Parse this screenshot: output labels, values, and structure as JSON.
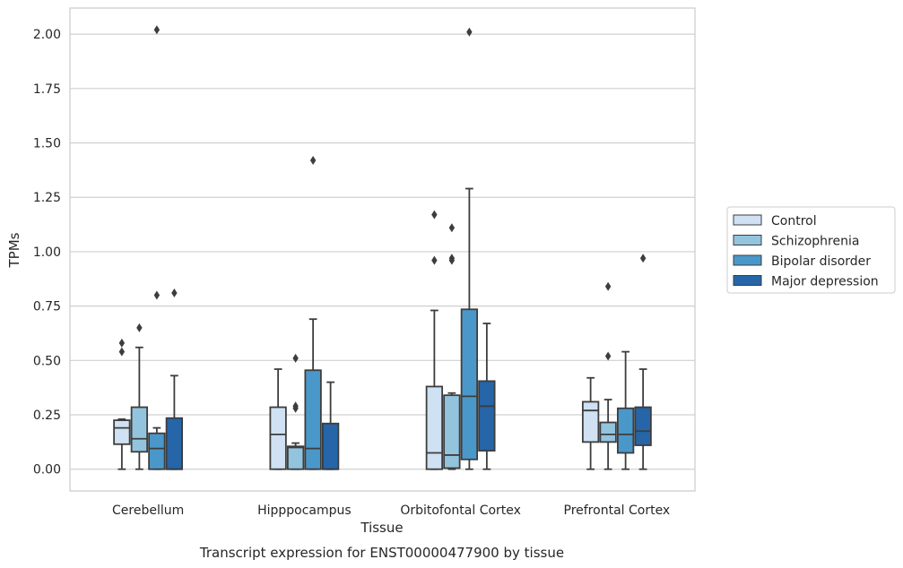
{
  "chart_data": {
    "type": "boxplot",
    "title": "Transcript expression for ENST00000477900 by tissue",
    "xlabel": "Tissue",
    "ylabel": "TPMs",
    "ylim": [
      -0.1,
      2.12
    ],
    "yticks": [
      "0.00",
      "0.25",
      "0.50",
      "0.75",
      "1.00",
      "1.25",
      "1.50",
      "1.75",
      "2.00"
    ],
    "grid": "horizontal",
    "legend_position": "right",
    "categories": [
      "Cerebellum",
      "Hipppocampus",
      "Orbitofontal Cortex",
      "Prefrontal Cortex"
    ],
    "series": [
      {
        "name": "Control",
        "color": "#cfe1f2",
        "boxes": [
          {
            "whislo": 0.0,
            "q1": 0.115,
            "med": 0.19,
            "q3": 0.225,
            "whishi": 0.23,
            "fliers": [
              0.54,
              0.58
            ]
          },
          {
            "whislo": 0.0,
            "q1": 0.0,
            "med": 0.16,
            "q3": 0.285,
            "whishi": 0.46,
            "fliers": []
          },
          {
            "whislo": 0.0,
            "q1": 0.0,
            "med": 0.075,
            "q3": 0.38,
            "whishi": 0.73,
            "fliers": [
              0.96,
              1.17
            ]
          },
          {
            "whislo": 0.0,
            "q1": 0.125,
            "med": 0.27,
            "q3": 0.31,
            "whishi": 0.42,
            "fliers": []
          }
        ]
      },
      {
        "name": "Schizophrenia",
        "color": "#93c4de",
        "boxes": [
          {
            "whislo": 0.0,
            "q1": 0.08,
            "med": 0.14,
            "q3": 0.285,
            "whishi": 0.56,
            "fliers": [
              0.65
            ]
          },
          {
            "whislo": 0.0,
            "q1": 0.0,
            "med": 0.1,
            "q3": 0.105,
            "whishi": 0.12,
            "fliers": [
              0.28,
              0.29,
              0.51
            ]
          },
          {
            "whislo": 0.0,
            "q1": 0.005,
            "med": 0.065,
            "q3": 0.34,
            "whishi": 0.35,
            "fliers": [
              0.96,
              0.97,
              1.11
            ]
          },
          {
            "whislo": 0.0,
            "q1": 0.125,
            "med": 0.16,
            "q3": 0.215,
            "whishi": 0.32,
            "fliers": [
              0.52,
              0.84
            ]
          }
        ]
      },
      {
        "name": "Bipolar disorder",
        "color": "#4a98c9",
        "boxes": [
          {
            "whislo": 0.0,
            "q1": 0.0,
            "med": 0.095,
            "q3": 0.165,
            "whishi": 0.19,
            "fliers": [
              0.8,
              2.02
            ]
          },
          {
            "whislo": 0.0,
            "q1": 0.0,
            "med": 0.095,
            "q3": 0.455,
            "whishi": 0.69,
            "fliers": [
              1.42
            ]
          },
          {
            "whislo": 0.0,
            "q1": 0.045,
            "med": 0.335,
            "q3": 0.735,
            "whishi": 1.29,
            "fliers": [
              2.01
            ]
          },
          {
            "whislo": 0.0,
            "q1": 0.075,
            "med": 0.16,
            "q3": 0.28,
            "whishi": 0.54,
            "fliers": []
          }
        ]
      },
      {
        "name": "Major depression",
        "color": "#2565a8",
        "boxes": [
          {
            "whislo": 0.0,
            "q1": 0.0,
            "med": 0.0,
            "q3": 0.235,
            "whishi": 0.43,
            "fliers": [
              0.81
            ]
          },
          {
            "whislo": 0.0,
            "q1": 0.0,
            "med": 0.0,
            "q3": 0.21,
            "whishi": 0.4,
            "fliers": []
          },
          {
            "whislo": 0.0,
            "q1": 0.085,
            "med": 0.29,
            "q3": 0.405,
            "whishi": 0.67,
            "fliers": []
          },
          {
            "whislo": 0.0,
            "q1": 0.11,
            "med": 0.175,
            "q3": 0.285,
            "whishi": 0.46,
            "fliers": [
              0.97
            ]
          }
        ]
      }
    ]
  }
}
